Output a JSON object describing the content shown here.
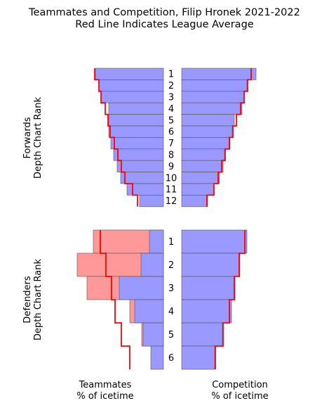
{
  "chart_data": {
    "type": "bar",
    "title": "Teammates and Competition, Filip Hronek 2021-2022",
    "subtitle": "Red Line Indicates League Average",
    "teammates_label": [
      "Teammates",
      "% of icetime"
    ],
    "competition_label": [
      "Competition",
      "% of icetime"
    ],
    "colors": {
      "bar_blue": "#9999ff",
      "bar_red": "#ff9999",
      "league_line": "#ff0000",
      "edge": "#555555"
    },
    "panels": [
      {
        "name": "forwards",
        "ylabel": [
          "Forwards",
          "Depth Chart Rank"
        ],
        "ranks": [
          "1",
          "2",
          "3",
          "4",
          "5",
          "6",
          "7",
          "8",
          "9",
          "10",
          "11",
          "12"
        ],
        "teammates_blue": [
          97,
          92,
          89,
          78,
          78,
          78,
          75,
          71,
          66,
          61,
          52,
          34
        ],
        "teammates_red": [
          0,
          0,
          0,
          0,
          0,
          0,
          0,
          0,
          0,
          0,
          0,
          0
        ],
        "teammates_league": [
          98,
          92,
          89,
          83,
          79,
          76,
          70,
          65,
          60,
          55,
          44,
          37
        ],
        "competition": [
          106,
          93,
          89,
          86,
          75,
          72,
          69,
          61,
          59,
          54,
          46,
          37
        ],
        "competition_league": [
          99,
          94,
          89,
          84,
          78,
          73,
          68,
          62,
          57,
          52,
          46,
          36
        ]
      },
      {
        "name": "defenders",
        "ylabel": [
          "Defenders",
          "Depth Chart Rank"
        ],
        "ranks": [
          "1",
          "2",
          "3",
          "4",
          "5",
          "6"
        ],
        "teammates_blue": [
          20,
          32,
          63,
          41,
          29,
          18
        ],
        "teammates_red": [
          100,
          123,
          109,
          48,
          31,
          0
        ],
        "teammates_league": [
          90,
          82,
          74,
          69,
          60,
          48
        ],
        "competition": [
          93,
          83,
          76,
          71,
          58,
          47
        ],
        "competition_league": [
          90,
          82,
          75,
          68,
          59,
          48
        ]
      }
    ]
  }
}
